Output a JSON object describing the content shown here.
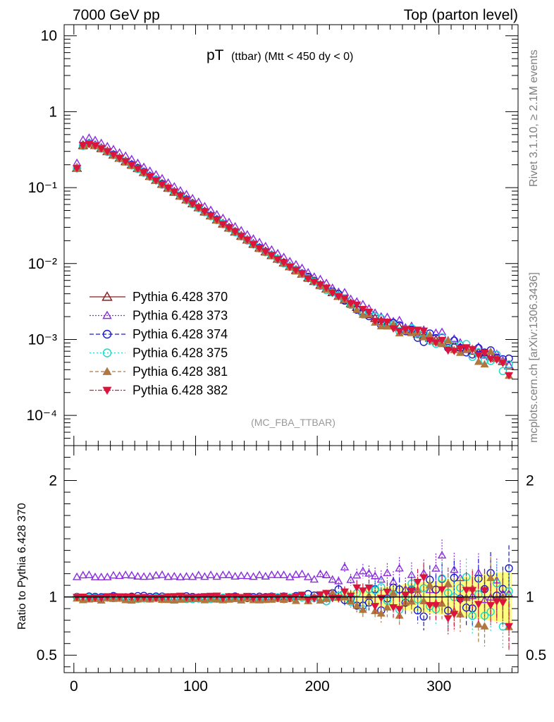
{
  "header": {
    "left": "7000 GeV pp",
    "right": "Top (parton level)"
  },
  "side_text": {
    "rivet": "Rivet 3.1.10, ≥ 2.1M events",
    "mcplots": "mcplots.cern.ch [arXiv:1306.3436]"
  },
  "plot_title": {
    "main": "pT",
    "sub": "(ttbar) (Mtt < 450 dy < 0)"
  },
  "analysis_tag": "(MC_FBA_TTBAR)",
  "ratio_ylabel": "Ratio to Pythia 6.428 370",
  "colors": {
    "band": "#ffff80",
    "s370": "#8b1a1a",
    "s373": "#8a2be2",
    "s374": "#1a1acd",
    "s375": "#1ad9c8",
    "s381": "#b07840",
    "s382": "#dc143c"
  },
  "chart_data": [
    {
      "type": "scatter",
      "panel": "main",
      "yscale": "log",
      "xlim": [
        -8,
        365
      ],
      "ylim": [
        4e-05,
        14
      ],
      "ytick_labels": [
        "10",
        "1",
        "10⁻¹",
        "10⁻²",
        "10⁻³",
        "10⁻⁴"
      ],
      "ytick_values": [
        10,
        1,
        0.1,
        0.01,
        0.001,
        0.0001
      ],
      "legend_position": "lower-left",
      "series": [
        {
          "name": "Pythia 6.428 370",
          "marker": "triangle-open",
          "line": "solid"
        },
        {
          "name": "Pythia 6.428 373",
          "marker": "triangle-open-small",
          "line": "dotted"
        },
        {
          "name": "Pythia 6.428 374",
          "marker": "circle-open",
          "line": "dashed"
        },
        {
          "name": "Pythia 6.428 375",
          "marker": "circle-open",
          "line": "dotted"
        },
        {
          "name": "Pythia 6.428 381",
          "marker": "triangle-filled",
          "line": "dashed"
        },
        {
          "name": "Pythia 6.428 382",
          "marker": "triangle-down-filled",
          "line": "dashdot"
        }
      ],
      "reference_values": {
        "x": [
          2.5,
          7.5,
          12.5,
          17.5,
          22.5,
          50,
          100,
          150,
          200,
          250,
          300,
          350,
          357.5
        ],
        "y": [
          0.18,
          0.36,
          0.38,
          0.36,
          0.33,
          0.19,
          0.058,
          0.017,
          0.0055,
          0.0018,
          0.00095,
          0.00055,
          0.00045
        ]
      }
    },
    {
      "type": "scatter",
      "panel": "ratio",
      "xlim": [
        -8,
        365
      ],
      "ylim": [
        0.35,
        2.3
      ],
      "xtick_labels": [
        "0",
        "100",
        "200",
        "300"
      ],
      "xtick_values": [
        0,
        100,
        200,
        300
      ],
      "ytick_labels": [
        "2",
        "1",
        "0.5"
      ],
      "ytick_values": [
        2,
        1,
        0.5
      ],
      "ylabel": "Ratio to Pythia 6.428 370",
      "approx_ratio_levels": {
        "Pythia 6.428 370": 1.0,
        "Pythia 6.428 373": 1.18,
        "Pythia 6.428 374": 1.0,
        "Pythia 6.428 375": 0.99,
        "Pythia 6.428 381": 0.98,
        "Pythia 6.428 382": 1.0
      }
    }
  ]
}
